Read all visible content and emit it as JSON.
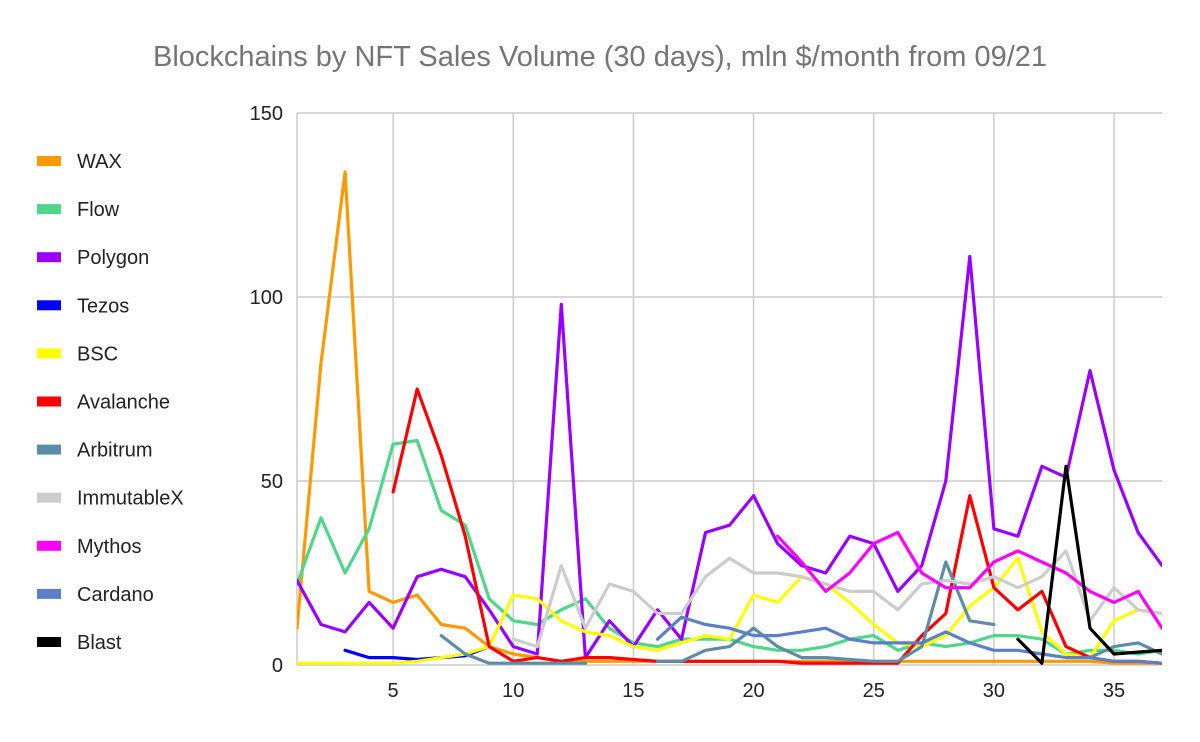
{
  "chart_data": {
    "type": "line",
    "title": "Blockchains by NFT Sales Volume (30 days), mln $/month from 09/21",
    "xlabel": "",
    "ylabel": "",
    "xlim": [
      1,
      37
    ],
    "ylim": [
      0,
      150
    ],
    "grid": true,
    "legend_position": "left",
    "x_ticks": [
      5,
      10,
      15,
      20,
      25,
      30,
      35
    ],
    "y_ticks": [
      0,
      50,
      100,
      150
    ],
    "series": [
      {
        "name": "WAX",
        "color": "#ff9900",
        "points": [
          [
            1,
            10
          ],
          [
            2,
            82
          ],
          [
            3,
            134
          ],
          [
            4,
            20
          ],
          [
            5,
            17
          ],
          [
            6,
            19
          ],
          [
            7,
            11
          ],
          [
            8,
            10
          ],
          [
            9,
            5
          ],
          [
            10,
            3
          ],
          [
            11,
            2
          ],
          [
            12,
            1
          ],
          [
            13,
            1
          ],
          [
            14,
            1
          ],
          [
            15,
            1
          ],
          [
            16,
            1
          ],
          [
            17,
            1
          ],
          [
            18,
            1
          ],
          [
            19,
            1
          ],
          [
            20,
            1
          ],
          [
            21,
            1
          ],
          [
            22,
            1
          ],
          [
            23,
            1
          ],
          [
            24,
            1
          ],
          [
            25,
            1
          ],
          [
            26,
            1
          ],
          [
            27,
            1
          ],
          [
            28,
            1
          ],
          [
            29,
            1
          ],
          [
            30,
            1
          ],
          [
            31,
            1
          ],
          [
            32,
            1
          ],
          [
            33,
            1
          ],
          [
            34,
            1
          ],
          [
            35,
            0.5
          ],
          [
            36,
            0.5
          ],
          [
            37,
            0.5
          ]
        ]
      },
      {
        "name": "Flow",
        "color": "#4fd68a",
        "points": [
          [
            1,
            22
          ],
          [
            2,
            40
          ],
          [
            3,
            25
          ],
          [
            4,
            37
          ],
          [
            5,
            60
          ],
          [
            6,
            61
          ],
          [
            7,
            42
          ],
          [
            8,
            38
          ],
          [
            9,
            18
          ],
          [
            10,
            12
          ],
          [
            11,
            11
          ],
          [
            12,
            15
          ],
          [
            13,
            18
          ],
          [
            14,
            10
          ],
          [
            15,
            6
          ],
          [
            16,
            5
          ],
          [
            17,
            7
          ],
          [
            18,
            7
          ],
          [
            19,
            7
          ],
          [
            20,
            5
          ],
          [
            21,
            4
          ],
          [
            22,
            4
          ],
          [
            23,
            5
          ],
          [
            24,
            7
          ],
          [
            25,
            8
          ],
          [
            26,
            4
          ],
          [
            27,
            6
          ],
          [
            28,
            5
          ],
          [
            29,
            6
          ],
          [
            30,
            8
          ],
          [
            31,
            8
          ],
          [
            32,
            7
          ],
          [
            33,
            3
          ],
          [
            34,
            4
          ],
          [
            35,
            4
          ],
          [
            36,
            3
          ],
          [
            37,
            4
          ]
        ]
      },
      {
        "name": "Polygon",
        "color": "#9900ff",
        "points": [
          [
            1,
            23
          ],
          [
            2,
            11
          ],
          [
            3,
            9
          ],
          [
            4,
            17
          ],
          [
            5,
            10
          ],
          [
            6,
            24
          ],
          [
            7,
            26
          ],
          [
            8,
            24
          ],
          [
            9,
            15
          ],
          [
            10,
            5
          ],
          [
            11,
            3
          ],
          [
            12,
            98
          ],
          [
            13,
            2
          ],
          [
            14,
            12
          ],
          [
            15,
            5
          ],
          [
            16,
            15
          ],
          [
            17,
            7
          ],
          [
            18,
            36
          ],
          [
            19,
            38
          ],
          [
            20,
            46
          ],
          [
            21,
            33
          ],
          [
            22,
            27
          ],
          [
            23,
            25
          ],
          [
            24,
            35
          ],
          [
            25,
            33
          ],
          [
            26,
            20
          ],
          [
            27,
            27
          ],
          [
            28,
            50
          ],
          [
            29,
            111
          ],
          [
            30,
            37
          ],
          [
            31,
            35
          ],
          [
            32,
            54
          ],
          [
            33,
            51
          ],
          [
            34,
            80
          ],
          [
            35,
            53
          ],
          [
            36,
            36
          ],
          [
            37,
            27
          ]
        ]
      },
      {
        "name": "Tezos",
        "color": "#0000ff",
        "points": [
          [
            3,
            4
          ],
          [
            4,
            2
          ],
          [
            5,
            2
          ],
          [
            6,
            1.5
          ],
          [
            7,
            2
          ],
          [
            8,
            2.5
          ],
          [
            9,
            5
          ]
        ]
      },
      {
        "name": "BSC",
        "color": "#ffff00",
        "points": [
          [
            1,
            0.5
          ],
          [
            2,
            0.5
          ],
          [
            3,
            0.5
          ],
          [
            4,
            0.5
          ],
          [
            5,
            0.5
          ],
          [
            6,
            1
          ],
          [
            7,
            2
          ],
          [
            8,
            3
          ],
          [
            9,
            5
          ],
          [
            10,
            19
          ],
          [
            11,
            18
          ],
          [
            12,
            12
          ],
          [
            13,
            9
          ],
          [
            14,
            8
          ],
          [
            15,
            5
          ],
          [
            16,
            4
          ],
          [
            17,
            6
          ],
          [
            18,
            8
          ],
          [
            19,
            7
          ],
          [
            20,
            19
          ],
          [
            21,
            17
          ],
          [
            22,
            24
          ],
          [
            23,
            22
          ],
          [
            24,
            17
          ],
          [
            25,
            11
          ],
          [
            26,
            6
          ],
          [
            27,
            5
          ],
          [
            28,
            8
          ],
          [
            29,
            16
          ],
          [
            30,
            21
          ],
          [
            31,
            29
          ],
          [
            32,
            9
          ],
          [
            33,
            3
          ],
          [
            34,
            2
          ],
          [
            35,
            12
          ],
          [
            36,
            15
          ],
          [
            37,
            14
          ]
        ]
      },
      {
        "name": "Avalanche",
        "color": "#ff0000",
        "points": [
          [
            5,
            47
          ],
          [
            6,
            75
          ],
          [
            7,
            57
          ],
          [
            8,
            35
          ],
          [
            9,
            5
          ],
          [
            10,
            1
          ],
          [
            11,
            2
          ],
          [
            12,
            1
          ],
          [
            13,
            2
          ],
          [
            14,
            2
          ],
          [
            15,
            1.5
          ],
          [
            16,
            1
          ],
          [
            17,
            1
          ],
          [
            18,
            1
          ],
          [
            19,
            1
          ],
          [
            20,
            1
          ],
          [
            21,
            1
          ],
          [
            22,
            0.5
          ],
          [
            23,
            0.5
          ],
          [
            24,
            0.5
          ],
          [
            25,
            0.5
          ],
          [
            26,
            0.5
          ],
          [
            27,
            8
          ],
          [
            28,
            14
          ],
          [
            29,
            46
          ],
          [
            30,
            21
          ],
          [
            31,
            15
          ],
          [
            32,
            20
          ],
          [
            33,
            5
          ],
          [
            34,
            2
          ],
          [
            35,
            1
          ],
          [
            36,
            1
          ],
          [
            37,
            0.5
          ]
        ]
      },
      {
        "name": "Arbitrum",
        "color": "#5b8ea6",
        "points": [
          [
            7,
            8
          ],
          [
            8,
            3
          ],
          [
            9,
            0.5
          ],
          [
            10,
            0.5
          ],
          [
            11,
            0.5
          ],
          [
            12,
            0.5
          ],
          [
            13,
            0.5
          ],
          [
            14,
            null
          ],
          [
            15,
            null
          ],
          [
            16,
            1
          ],
          [
            17,
            1
          ],
          [
            18,
            4
          ],
          [
            19,
            5
          ],
          [
            20,
            10
          ],
          [
            21,
            5
          ],
          [
            22,
            2
          ],
          [
            23,
            2
          ],
          [
            24,
            1.5
          ],
          [
            25,
            1
          ],
          [
            26,
            1
          ],
          [
            27,
            5
          ],
          [
            28,
            28
          ],
          [
            29,
            12
          ],
          [
            30,
            11
          ],
          [
            31,
            null
          ],
          [
            32,
            null
          ],
          [
            33,
            null
          ],
          [
            34,
            2
          ],
          [
            35,
            5
          ],
          [
            36,
            6
          ],
          [
            37,
            3
          ]
        ]
      },
      {
        "name": "ImmutableX",
        "color": "#cccccc",
        "points": [
          [
            10,
            7
          ],
          [
            11,
            5
          ],
          [
            12,
            27
          ],
          [
            13,
            10
          ],
          [
            14,
            22
          ],
          [
            15,
            20
          ],
          [
            16,
            14
          ],
          [
            17,
            14
          ],
          [
            18,
            24
          ],
          [
            19,
            29
          ],
          [
            20,
            25
          ],
          [
            21,
            25
          ],
          [
            22,
            24
          ],
          [
            23,
            22
          ],
          [
            24,
            20
          ],
          [
            25,
            20
          ],
          [
            26,
            15
          ],
          [
            27,
            22
          ],
          [
            28,
            23
          ],
          [
            29,
            22
          ],
          [
            30,
            24
          ],
          [
            31,
            21
          ],
          [
            32,
            24
          ],
          [
            33,
            31
          ],
          [
            34,
            12
          ],
          [
            35,
            21
          ],
          [
            36,
            15
          ],
          [
            37,
            14
          ]
        ]
      },
      {
        "name": "Mythos",
        "color": "#ff00ff",
        "points": [
          [
            21,
            35
          ],
          [
            22,
            28
          ],
          [
            23,
            20
          ],
          [
            24,
            25
          ],
          [
            25,
            33
          ],
          [
            26,
            36
          ],
          [
            27,
            25
          ],
          [
            28,
            21
          ],
          [
            29,
            21
          ],
          [
            30,
            28
          ],
          [
            31,
            31
          ],
          [
            32,
            28
          ],
          [
            33,
            25
          ],
          [
            34,
            20
          ],
          [
            35,
            17
          ],
          [
            36,
            20
          ],
          [
            37,
            10
          ]
        ]
      },
      {
        "name": "Cardano",
        "color": "#5b7fc8",
        "points": [
          [
            16,
            7
          ],
          [
            17,
            13
          ],
          [
            18,
            11
          ],
          [
            19,
            10
          ],
          [
            20,
            8
          ],
          [
            21,
            8
          ],
          [
            22,
            9
          ],
          [
            23,
            10
          ],
          [
            24,
            7
          ],
          [
            25,
            6
          ],
          [
            26,
            6
          ],
          [
            27,
            6
          ],
          [
            28,
            9
          ],
          [
            29,
            6
          ],
          [
            30,
            4
          ],
          [
            31,
            4
          ],
          [
            32,
            3
          ],
          [
            33,
            2
          ],
          [
            34,
            2
          ],
          [
            35,
            1
          ],
          [
            36,
            1
          ],
          [
            37,
            0.5
          ]
        ]
      },
      {
        "name": "Blast",
        "color": "#000000",
        "points": [
          [
            31,
            7
          ],
          [
            32,
            0.5
          ],
          [
            33,
            54
          ],
          [
            34,
            10
          ],
          [
            35,
            3
          ],
          [
            36,
            3.5
          ],
          [
            37,
            4
          ]
        ]
      }
    ]
  }
}
